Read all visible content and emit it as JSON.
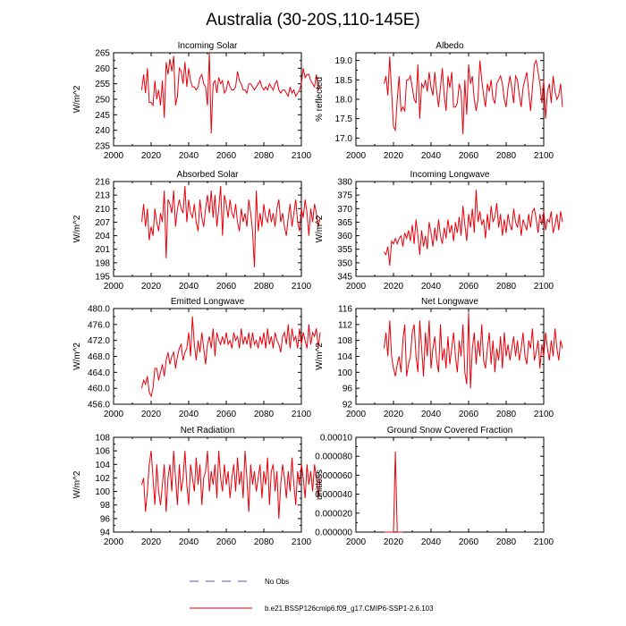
{
  "title": "Australia (30-20S,110-145E)",
  "colors": {
    "model": "#e8000b",
    "obs": "#5a4fcf",
    "axis": "#000000"
  },
  "legend": {
    "obs_label": "No Obs",
    "model_label": "b.e21.BSSP126cmip6.f09_g17.CMIP6-SSP1-2.6.103"
  },
  "chart_data": [
    {
      "type": "line",
      "title": "Incoming Solar",
      "ylabel": "W/m^2",
      "xlim": [
        2000,
        2100
      ],
      "ylim": [
        235,
        265
      ],
      "yticks": [
        "235",
        "240",
        "245",
        "250",
        "255",
        "260",
        "265"
      ],
      "xticks": [
        "2000",
        "2020",
        "2040",
        "2060",
        "2080",
        "2100"
      ],
      "series": [
        {
          "x_start": 2015,
          "values": [
            253,
            258,
            252,
            260,
            249,
            249,
            248,
            256,
            250,
            253,
            248,
            256,
            244,
            262,
            258,
            263,
            259,
            264,
            248,
            251,
            260,
            259,
            255,
            262,
            254,
            260,
            256,
            254,
            254,
            253,
            254,
            257,
            258,
            255,
            254,
            248,
            265,
            239,
            255,
            256,
            252,
            257,
            255,
            256,
            252,
            253,
            256,
            254,
            253,
            253,
            254,
            259,
            256,
            255,
            253,
            253,
            252,
            255,
            255,
            254,
            253,
            254,
            255,
            256,
            254,
            253,
            254,
            253,
            255,
            254,
            253,
            255,
            256,
            253,
            252,
            253,
            253,
            252,
            251,
            254,
            252,
            253,
            251,
            252,
            253,
            255,
            260,
            257,
            258,
            258,
            256,
            255,
            254,
            258,
            253,
            254
          ]
        }
      ]
    },
    {
      "type": "line",
      "title": "Albedo",
      "ylabel": "% reflected",
      "xlim": [
        2000,
        2100
      ],
      "ylim": [
        16.8,
        19.2
      ],
      "yticks": [
        "17.0",
        "17.5",
        "18.0",
        "18.5",
        "19.0"
      ],
      "xticks": [
        "2000",
        "2020",
        "2040",
        "2060",
        "2080",
        "2100"
      ],
      "series": [
        {
          "x_start": 2015,
          "values": [
            18.4,
            18.6,
            18.1,
            19.1,
            18.2,
            17.3,
            17.2,
            18.0,
            18.6,
            17.7,
            17.8,
            17.7,
            18.5,
            18.5,
            18.6,
            18.3,
            18.0,
            17.9,
            18.9,
            17.5,
            18.4,
            18.3,
            18.5,
            18.2,
            18.7,
            18.3,
            18.1,
            18.7,
            18.2,
            17.8,
            18.3,
            18.8,
            18.1,
            17.7,
            18.6,
            18.3,
            18.7,
            17.8,
            17.8,
            17.9,
            18.4,
            18.2,
            17.1,
            18.5,
            17.6,
            18.9,
            18.4,
            18.6,
            18.0,
            17.7,
            18.0,
            19.0,
            18.5,
            18.1,
            17.8,
            18.4,
            18.2,
            18.5,
            18.0,
            17.9,
            18.4,
            18.5,
            18.6,
            18.4,
            18.0,
            17.8,
            18.3,
            18.6,
            18.3,
            17.9,
            18.6,
            18.5,
            18.1,
            17.8,
            18.3,
            18.5,
            18.7,
            18.2,
            17.7,
            18.3,
            18.9,
            19.0,
            18.7,
            18.4,
            17.9,
            18.5,
            17.5,
            18.2,
            18.4,
            17.9,
            18.6,
            18.2,
            18.0,
            18.1,
            18.4,
            17.8
          ]
        }
      ]
    },
    {
      "type": "line",
      "title": "Absorbed Solar",
      "ylabel": "W/m^2",
      "xlim": [
        2000,
        2100
      ],
      "ylim": [
        195,
        216
      ],
      "yticks": [
        "195",
        "198",
        "201",
        "204",
        "207",
        "210",
        "213",
        "216"
      ],
      "xticks": [
        "2000",
        "2020",
        "2040",
        "2060",
        "2080",
        "2100"
      ],
      "series": [
        {
          "x_start": 2015,
          "values": [
            207,
            211,
            206,
            210,
            203,
            206,
            204,
            210,
            207,
            205,
            209,
            207,
            214,
            199,
            212,
            211,
            209,
            214,
            206,
            210,
            212,
            210,
            209,
            215,
            207,
            212,
            209,
            208,
            211,
            207,
            205,
            212,
            208,
            206,
            210,
            213,
            209,
            214,
            208,
            213,
            206,
            210,
            215,
            204,
            213,
            211,
            208,
            212,
            209,
            208,
            211,
            207,
            205,
            210,
            207,
            209,
            206,
            212,
            209,
            205,
            197,
            214,
            205,
            209,
            206,
            211,
            208,
            207,
            210,
            207,
            209,
            206,
            210,
            212,
            207,
            209,
            206,
            204,
            208,
            211,
            206,
            209,
            212,
            207,
            205,
            210,
            208,
            212,
            209,
            204,
            210,
            207,
            211,
            209,
            206,
            208
          ]
        }
      ]
    },
    {
      "type": "line",
      "title": "Incoming Longwave",
      "ylabel": "W/m^2",
      "xlim": [
        2000,
        2100
      ],
      "ylim": [
        345,
        380
      ],
      "yticks": [
        "345",
        "350",
        "355",
        "360",
        "365",
        "370",
        "375",
        "380"
      ],
      "xticks": [
        "2000",
        "2020",
        "2040",
        "2060",
        "2080",
        "2100"
      ],
      "series": [
        {
          "x_start": 2015,
          "values": [
            354,
            353,
            356,
            349,
            358,
            357,
            359,
            357,
            359,
            360,
            356,
            361,
            359,
            362,
            358,
            364,
            357,
            366,
            360,
            353,
            362,
            356,
            360,
            355,
            365,
            361,
            356,
            363,
            358,
            366,
            360,
            357,
            363,
            359,
            366,
            361,
            364,
            358,
            365,
            361,
            367,
            360,
            371,
            364,
            358,
            368,
            363,
            370,
            361,
            377,
            365,
            369,
            364,
            366,
            359,
            368,
            362,
            371,
            365,
            367,
            372,
            363,
            368,
            360,
            366,
            361,
            368,
            364,
            362,
            370,
            365,
            363,
            368,
            360,
            366,
            364,
            362,
            368,
            363,
            369,
            370,
            366,
            361,
            368,
            364,
            369,
            362,
            366,
            365,
            369,
            361,
            364,
            368,
            362,
            369,
            365
          ]
        }
      ]
    },
    {
      "type": "line",
      "title": "Emitted Longwave",
      "ylabel": "W/m^2",
      "xlim": [
        2000,
        2100
      ],
      "ylim": [
        456,
        480
      ],
      "yticks": [
        "456.0",
        "460.0",
        "464.0",
        "468.0",
        "472.0",
        "476.0",
        "480.0"
      ],
      "xticks": [
        "2000",
        "2020",
        "2040",
        "2060",
        "2080",
        "2100"
      ],
      "series": [
        {
          "x_start": 2015,
          "values": [
            460,
            462,
            461,
            463,
            459,
            458,
            460,
            465,
            465,
            462,
            464,
            466,
            463,
            467,
            469,
            466,
            468,
            469,
            465,
            468,
            470,
            471,
            467,
            469,
            470,
            474,
            468,
            478,
            471,
            467,
            472,
            469,
            474,
            470,
            466,
            471,
            473,
            470,
            475,
            468,
            474,
            472,
            471,
            473,
            471,
            474,
            471,
            472,
            470,
            474,
            472,
            473,
            470,
            475,
            471,
            473,
            471,
            474,
            470,
            474,
            471,
            472,
            470,
            473,
            471,
            474,
            470,
            475,
            471,
            473,
            470,
            474,
            472,
            471,
            469,
            473,
            474,
            471,
            476,
            470,
            475,
            472,
            473,
            470,
            475,
            471,
            474,
            472,
            470,
            476,
            471,
            474,
            473,
            475,
            470,
            474
          ]
        }
      ]
    },
    {
      "type": "line",
      "title": "Net Longwave",
      "ylabel": "W/m^2",
      "xlim": [
        2000,
        2100
      ],
      "ylim": [
        92,
        116
      ],
      "yticks": [
        "92",
        "96",
        "100",
        "104",
        "108",
        "112",
        "116"
      ],
      "xticks": [
        "2000",
        "2020",
        "2040",
        "2060",
        "2080",
        "2100"
      ],
      "series": [
        {
          "x_start": 2015,
          "values": [
            106,
            110,
            104,
            113,
            104,
            101,
            99,
            102,
            104,
            100,
            108,
            112,
            99,
            102,
            104,
            110,
            112,
            104,
            100,
            113,
            106,
            99,
            110,
            104,
            113,
            101,
            106,
            109,
            103,
            100,
            112,
            103,
            106,
            101,
            109,
            102,
            106,
            110,
            104,
            100,
            108,
            104,
            112,
            100,
            97,
            115,
            96,
            106,
            110,
            102,
            108,
            104,
            112,
            103,
            101,
            106,
            110,
            102,
            108,
            100,
            106,
            103,
            109,
            101,
            110,
            104,
            107,
            103,
            106,
            109,
            104,
            108,
            103,
            106,
            110,
            104,
            102,
            108,
            106,
            111,
            103,
            105,
            108,
            101,
            107,
            104,
            110,
            106,
            103,
            108,
            104,
            111,
            106,
            103,
            108,
            106
          ]
        }
      ]
    },
    {
      "type": "line",
      "title": "Net Radiation",
      "ylabel": "W/m^2",
      "xlim": [
        2000,
        2100
      ],
      "ylim": [
        94,
        108
      ],
      "yticks": [
        "94",
        "96",
        "98",
        "100",
        "102",
        "104",
        "106",
        "108"
      ],
      "xticks": [
        "2000",
        "2020",
        "2040",
        "2060",
        "2080",
        "2100"
      ],
      "series": [
        {
          "x_start": 2015,
          "values": [
            101,
            102,
            97,
            100,
            104,
            106,
            102,
            98,
            104,
            100,
            98,
            101,
            104,
            97,
            102,
            104,
            100,
            106,
            102,
            98,
            104,
            100,
            102,
            106,
            101,
            98,
            104,
            102,
            100,
            105,
            101,
            104,
            98,
            102,
            103,
            106,
            100,
            103,
            101,
            104,
            99,
            106,
            102,
            100,
            104,
            101,
            103,
            99,
            102,
            104,
            100,
            105,
            101,
            103,
            99,
            106,
            102,
            97,
            104,
            101,
            103,
            100,
            102,
            104,
            99,
            103,
            101,
            105,
            98,
            103,
            104,
            100,
            103,
            96,
            101,
            104,
            102,
            99,
            103,
            100,
            105,
            101,
            98,
            103,
            101,
            104,
            102,
            99,
            104,
            101,
            103,
            100,
            104,
            102,
            99,
            102
          ]
        }
      ]
    },
    {
      "type": "line",
      "title": "Ground Snow Covered Fraction",
      "ylabel": "unitless",
      "xlim": [
        2000,
        2100
      ],
      "ylim": [
        0,
        0.0001
      ],
      "yticks": [
        "0.000000",
        "0.000020",
        "0.000040",
        "0.000060",
        "0.000080",
        "0.00010"
      ],
      "xticks": [
        "2000",
        "2020",
        "2040",
        "2060",
        "2080",
        "2100"
      ],
      "series": [
        {
          "x": [
            2015,
            2016,
            2017,
            2018,
            2019,
            2020,
            2021,
            2022,
            2023,
            2024,
            2025
          ],
          "values": [
            0,
            0,
            0,
            0,
            0,
            0,
            8.5e-05,
            0,
            0,
            0,
            0
          ]
        }
      ]
    }
  ]
}
